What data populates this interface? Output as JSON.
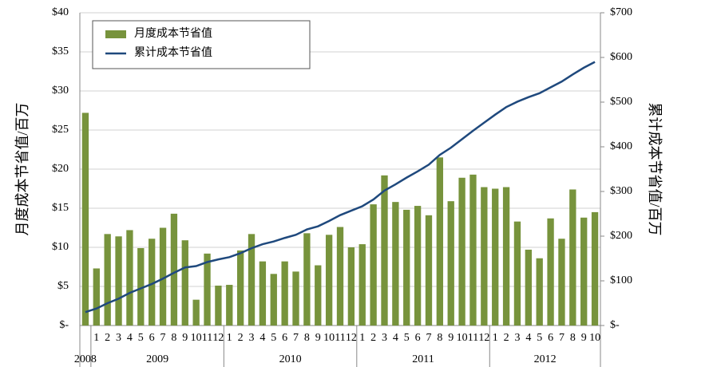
{
  "chart_data": {
    "type": "bar-line",
    "y_label": "月度成本节省值/百万",
    "y2_label": "累计成本节省值/百万",
    "categories": [
      null,
      "1",
      "2",
      "3",
      "4",
      "5",
      "6",
      "7",
      "8",
      "9",
      "10",
      "11",
      "12",
      "1",
      "2",
      "3",
      "4",
      "5",
      "6",
      "7",
      "8",
      "9",
      "10",
      "11",
      "12",
      "1",
      "2",
      "3",
      "4",
      "5",
      "6",
      "7",
      "8",
      "9",
      "10",
      "11",
      "12",
      "1",
      "2",
      "3",
      "4",
      "5",
      "6",
      "7",
      "8",
      "9",
      "10"
    ],
    "x_groups": [
      "2008",
      "2009",
      "2010",
      "2011",
      "2012"
    ],
    "series": [
      {
        "name": "月度成本节省值",
        "type": "bar",
        "color": "#77933c",
        "values": [
          27.2,
          7.3,
          11.7,
          11.4,
          12.2,
          9.9,
          11.1,
          12.5,
          14.3,
          10.9,
          3.3,
          9.2,
          5.1,
          5.2,
          9.6,
          11.7,
          8.2,
          6.6,
          8.2,
          6.9,
          11.8,
          7.7,
          11.6,
          12.6,
          10.0,
          10.4,
          15.5,
          19.2,
          15.8,
          14.8,
          15.3,
          14.1,
          21.5,
          15.9,
          18.9,
          19.3,
          17.7,
          17.5,
          17.7,
          13.3,
          9.7,
          8.6,
          13.7,
          11.1,
          17.4,
          13.8,
          14.5
        ]
      },
      {
        "name": "累计成本节省值",
        "type": "line",
        "color": "#1f497d",
        "axis": "y2",
        "values": [
          30,
          38,
          50,
          60,
          73,
          83,
          93,
          105,
          118,
          130,
          133,
          142,
          148,
          153,
          162,
          173,
          182,
          188,
          196,
          203,
          215,
          222,
          234,
          247,
          257,
          267,
          282,
          302,
          316,
          331,
          345,
          360,
          382,
          398,
          417,
          436,
          454,
          472,
          489,
          501,
          511,
          520,
          533,
          546,
          562,
          577,
          590
        ]
      }
    ],
    "ylim": [
      0,
      40
    ],
    "yticks": [
      {
        "value": 0,
        "label": "$-"
      },
      {
        "value": 5,
        "label": "$5"
      },
      {
        "value": 10,
        "label": "$10"
      },
      {
        "value": 15,
        "label": "$15"
      },
      {
        "value": 20,
        "label": "$20"
      },
      {
        "value": 25,
        "label": "$25"
      },
      {
        "value": 30,
        "label": "$30"
      },
      {
        "value": 35,
        "label": "$35"
      },
      {
        "value": 40,
        "label": "$40"
      }
    ],
    "y2lim": [
      0,
      700
    ],
    "y2ticks": [
      {
        "value": 0,
        "label": "$-"
      },
      {
        "value": 100,
        "label": "$100"
      },
      {
        "value": 200,
        "label": "$200"
      },
      {
        "value": 300,
        "label": "$300"
      },
      {
        "value": 400,
        "label": "$400"
      },
      {
        "value": 500,
        "label": "$500"
      },
      {
        "value": 600,
        "label": "$600"
      },
      {
        "value": 700,
        "label": "$700"
      }
    ],
    "grid": true,
    "legend": "top-left"
  }
}
